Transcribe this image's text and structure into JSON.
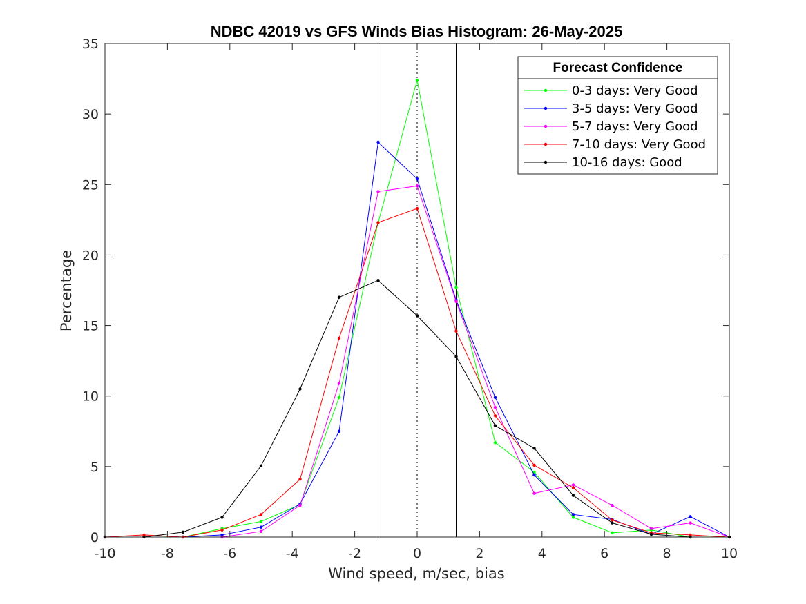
{
  "chart_data": {
    "type": "line",
    "title": "NDBC 42019 vs GFS Winds Bias Histogram: 26-May-2025",
    "xlabel": "Wind speed, m/sec, bias",
    "ylabel": "Percentage",
    "xlim": [
      -10,
      10
    ],
    "ylim": [
      0,
      35
    ],
    "xticks": [
      -10,
      -8,
      -6,
      -4,
      -2,
      0,
      2,
      4,
      6,
      8,
      10
    ],
    "yticks": [
      0,
      5,
      10,
      15,
      20,
      25,
      30,
      35
    ],
    "grid": false,
    "legend_title": "Forecast Confidence",
    "legend_position": "top-right",
    "reference_lines": {
      "solid": [
        -1.25,
        1.25
      ],
      "dotted": [
        0
      ]
    },
    "x": [
      -10,
      -8.75,
      -7.5,
      -6.25,
      -5,
      -3.75,
      -2.5,
      -1.25,
      0,
      1.25,
      2.5,
      3.75,
      5,
      6.25,
      7.5,
      8.75,
      10
    ],
    "series": [
      {
        "name": "0-3 days: Very Good",
        "color": "#00ff00",
        "values": [
          0,
          0,
          0,
          0.6,
          1.1,
          2.3,
          9.9,
          22.3,
          32.4,
          17.7,
          6.7,
          4.6,
          1.4,
          0.3,
          0.5,
          0,
          0
        ]
      },
      {
        "name": "3-5 days: Very Good",
        "color": "#0000ff",
        "values": [
          0,
          0,
          0,
          0.15,
          0.7,
          2.35,
          7.5,
          28.0,
          25.4,
          16.8,
          9.9,
          4.4,
          1.6,
          1.25,
          0.2,
          1.45,
          0
        ]
      },
      {
        "name": "5-7 days: Very Good",
        "color": "#ff00ff",
        "values": [
          0,
          0,
          0,
          0,
          0.4,
          2.25,
          10.9,
          24.5,
          24.9,
          16.7,
          9.2,
          3.1,
          3.7,
          2.25,
          0.6,
          1.0,
          0
        ]
      },
      {
        "name": "7-10 days: Very Good",
        "color": "#ff0000",
        "values": [
          0,
          0.15,
          0,
          0.5,
          1.6,
          4.1,
          14.1,
          22.3,
          23.3,
          14.6,
          8.6,
          5.1,
          3.5,
          1.2,
          0.3,
          0.15,
          0
        ]
      },
      {
        "name": "10-16 days: Good",
        "color": "#000000",
        "values": [
          0,
          0,
          0.35,
          1.4,
          5.05,
          10.5,
          17.0,
          18.2,
          15.7,
          12.8,
          7.9,
          6.3,
          2.95,
          1.0,
          0.2,
          0,
          0
        ]
      }
    ]
  }
}
